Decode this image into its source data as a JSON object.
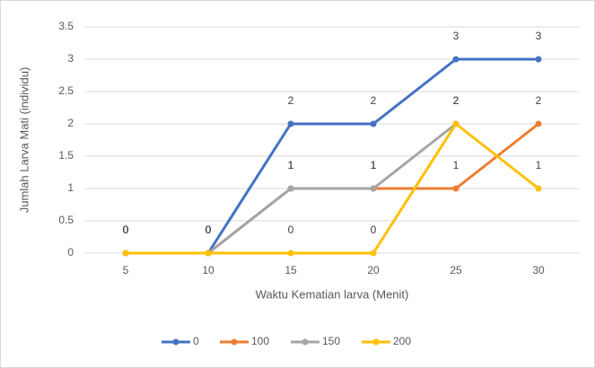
{
  "chart_data": {
    "type": "line",
    "x_label": "Waktu Kematian larva (Menit)",
    "y_label": "Jumlah Larva Mati (individu)",
    "categories": [
      "5",
      "10",
      "15",
      "20",
      "25",
      "30"
    ],
    "series": [
      {
        "name": "0",
        "color": "#4472c4",
        "values": [
          0,
          0,
          2,
          2,
          3,
          3
        ]
      },
      {
        "name": "100",
        "color": "#ed7d31",
        "values": [
          0,
          0,
          1,
          1,
          1,
          2
        ]
      },
      {
        "name": "150",
        "color": "#a5a5a5",
        "values": [
          0,
          0,
          1,
          1,
          2,
          null
        ]
      },
      {
        "name": "200",
        "color": "#ffc000",
        "values": [
          0,
          0,
          0,
          0,
          2,
          1
        ]
      }
    ],
    "ylim": [
      0,
      3.5
    ],
    "yticks": [
      0,
      0.5,
      1,
      1.5,
      2,
      2.5,
      3,
      3.5
    ],
    "grid": true,
    "legend": "bottom"
  }
}
